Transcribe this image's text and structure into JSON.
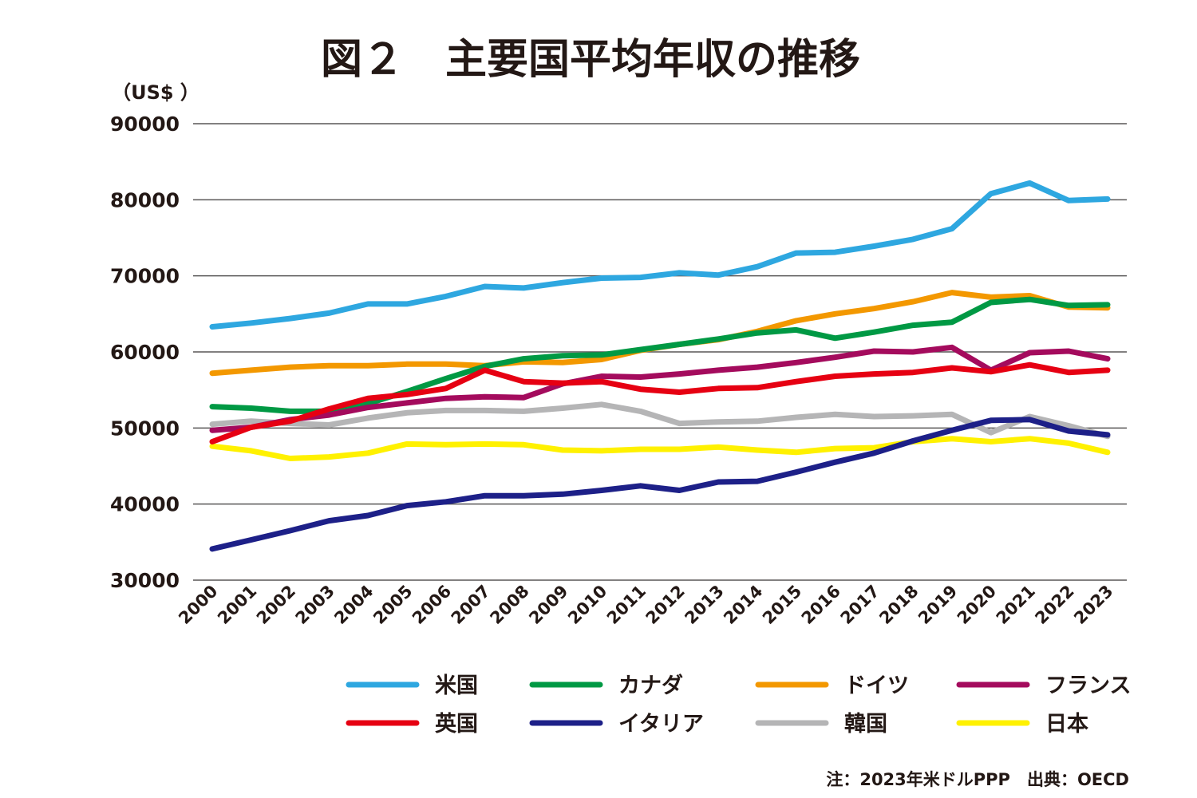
{
  "chart_data": {
    "type": "line",
    "title": "図２　主要国平均年収の推移",
    "ylabel": "（US$ ）",
    "xlabel": "",
    "ylim": [
      30000,
      90000
    ],
    "yticks": [
      "90000",
      "80000",
      "70000",
      "60000",
      "50000",
      "40000",
      "30000"
    ],
    "ytick_values": [
      90000,
      80000,
      70000,
      60000,
      50000,
      40000,
      30000
    ],
    "grid": true,
    "legend_position": "bottom",
    "x": [
      "2000",
      "2001",
      "2002",
      "2003",
      "2004",
      "2005",
      "2006",
      "2007",
      "2008",
      "2009",
      "2010",
      "2011",
      "2012",
      "2013",
      "2014",
      "2015",
      "2016",
      "2017",
      "2018",
      "2019",
      "2020",
      "2021",
      "2022",
      "2023"
    ],
    "series": [
      {
        "name": "ドイツ",
        "color": "#F39800",
        "values": [
          57200,
          57600,
          58000,
          58200,
          58200,
          58400,
          58400,
          58200,
          58700,
          58600,
          59000,
          60200,
          61000,
          61600,
          62700,
          64100,
          65000,
          65700,
          66600,
          67800,
          67200,
          67400,
          65900,
          65800
        ]
      },
      {
        "name": "カナダ",
        "color": "#009944",
        "values": [
          52800,
          52600,
          52200,
          52200,
          53200,
          54800,
          56500,
          58100,
          59100,
          59500,
          59600,
          60300,
          61000,
          61700,
          62500,
          62900,
          61800,
          62600,
          63500,
          63900,
          66500,
          66900,
          66100,
          66200
        ]
      },
      {
        "name": "韓国",
        "color": "#B5B5B6",
        "values": [
          50500,
          50900,
          50600,
          50400,
          51300,
          52000,
          52300,
          52300,
          52200,
          52600,
          53100,
          52200,
          50600,
          50800,
          50900,
          51400,
          51800,
          51500,
          51600,
          51800,
          49400,
          51500,
          50300,
          48900
        ]
      },
      {
        "name": "日本",
        "color": "#FFF100",
        "values": [
          47600,
          47000,
          46000,
          46200,
          46700,
          47900,
          47800,
          47900,
          47800,
          47100,
          47000,
          47200,
          47200,
          47500,
          47100,
          46800,
          47300,
          47400,
          48200,
          48600,
          48200,
          48600,
          48000,
          46800
        ]
      },
      {
        "name": "イタリア",
        "color": "#1D2088",
        "values": [
          34100,
          35300,
          36500,
          37800,
          38500,
          39800,
          40300,
          41100,
          41100,
          41300,
          41800,
          42400,
          41800,
          42900,
          43000,
          44200,
          45500,
          46700,
          48300,
          49700,
          51000,
          51100,
          49600,
          49100
        ]
      },
      {
        "name": "フランス",
        "color": "#A40B5D",
        "values": [
          49700,
          50100,
          51100,
          51700,
          52700,
          53300,
          53900,
          54100,
          54000,
          55800,
          56800,
          56700,
          57100,
          57600,
          58000,
          58600,
          59300,
          60100,
          60000,
          60600,
          57600,
          59900,
          60100,
          59100
        ]
      },
      {
        "name": "英国",
        "color": "#E60012",
        "values": [
          48200,
          50100,
          50900,
          52500,
          53900,
          54400,
          55200,
          57600,
          56100,
          55900,
          56100,
          55100,
          54700,
          55200,
          55300,
          56100,
          56800,
          57100,
          57300,
          57900,
          57400,
          58300,
          57300,
          57600
        ]
      },
      {
        "name": "米国",
        "color": "#2EA7E0",
        "values": [
          63300,
          63800,
          64400,
          65100,
          66300,
          66300,
          67300,
          68600,
          68400,
          69100,
          69700,
          69800,
          70400,
          70100,
          71200,
          73000,
          73100,
          73900,
          74800,
          76200,
          80800,
          82200,
          79900,
          80100
        ]
      }
    ],
    "legend": [
      {
        "name": "米国",
        "color": "#2EA7E0"
      },
      {
        "name": "カナダ",
        "color": "#009944"
      },
      {
        "name": "ドイツ",
        "color": "#F39800"
      },
      {
        "name": "フランス",
        "color": "#A40B5D"
      },
      {
        "name": "英国",
        "color": "#E60012"
      },
      {
        "name": "イタリア",
        "color": "#1D2088"
      },
      {
        "name": "韓国",
        "color": "#B5B5B6"
      },
      {
        "name": "日本",
        "color": "#FFF100"
      }
    ],
    "note": "注：2023年米ドルPPP　出典：OECD"
  }
}
